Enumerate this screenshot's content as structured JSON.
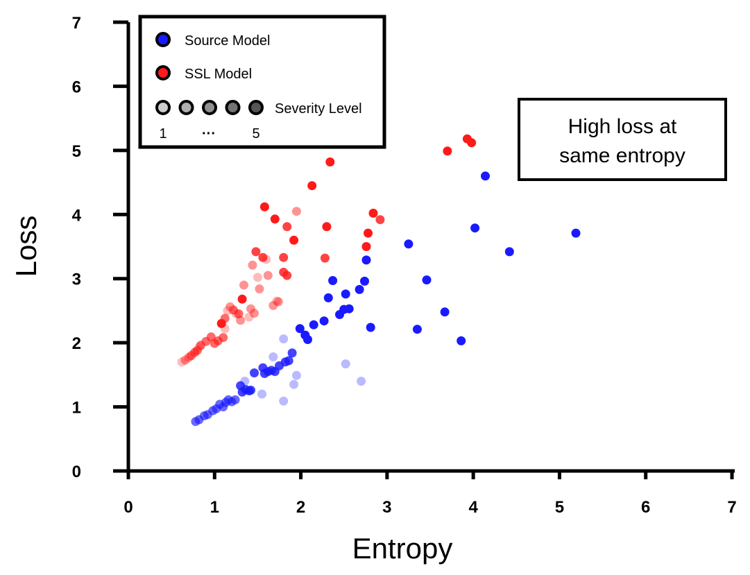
{
  "chart_data": {
    "type": "scatter",
    "title": "",
    "xlabel": "Entropy",
    "ylabel": "Loss",
    "xlim": [
      0,
      7
    ],
    "ylim": [
      0,
      7
    ],
    "xticks": [
      "0",
      "1",
      "2",
      "3",
      "4",
      "5",
      "6",
      "7"
    ],
    "yticks": [
      "0",
      "1",
      "2",
      "3",
      "4",
      "5",
      "6",
      "7"
    ],
    "grid": false,
    "legend": {
      "placement": "top-left",
      "source_label": "Source Model",
      "ssl_label": "SSL Model",
      "severity_label": "Severity Level",
      "severity_min": "1",
      "severity_dots": "···",
      "severity_max": "5"
    },
    "annotation": {
      "line1": "High loss at",
      "line2": "same entropy",
      "placement": "right"
    },
    "colors": {
      "source": "#1a1aff",
      "ssl": "#ff1a1a",
      "severity_fill": "#555555"
    },
    "series": [
      {
        "name": "Source Model",
        "key": "source",
        "points": [
          [
            0.78,
            0.77
          ],
          [
            0.82,
            0.8
          ],
          [
            0.88,
            0.86
          ],
          [
            0.92,
            0.88
          ],
          [
            0.98,
            0.94
          ],
          [
            1.02,
            0.97
          ],
          [
            1.06,
            1.04
          ],
          [
            1.1,
            1.0
          ],
          [
            1.13,
            1.07
          ],
          [
            1.16,
            1.11
          ],
          [
            1.2,
            1.08
          ],
          [
            1.24,
            1.11
          ],
          [
            1.3,
            1.33
          ],
          [
            1.32,
            1.23
          ],
          [
            1.36,
            1.27
          ],
          [
            1.4,
            1.25
          ],
          [
            1.42,
            1.26
          ],
          [
            1.46,
            1.53
          ],
          [
            1.56,
            1.61
          ],
          [
            1.58,
            1.52
          ],
          [
            1.62,
            1.55
          ],
          [
            1.66,
            1.57
          ],
          [
            1.7,
            1.55
          ],
          [
            1.75,
            1.64
          ],
          [
            1.82,
            1.7
          ],
          [
            1.86,
            1.72
          ],
          [
            1.9,
            1.84
          ],
          [
            1.99,
            2.22
          ],
          [
            2.05,
            2.12
          ],
          [
            2.08,
            2.05
          ],
          [
            2.15,
            2.28
          ],
          [
            2.27,
            2.34
          ],
          [
            2.32,
            2.7
          ],
          [
            2.37,
            2.97
          ],
          [
            2.45,
            2.44
          ],
          [
            2.5,
            2.52
          ],
          [
            2.52,
            2.76
          ],
          [
            2.56,
            2.53
          ],
          [
            2.68,
            2.83
          ],
          [
            2.74,
            2.96
          ],
          [
            2.76,
            3.29
          ],
          [
            2.81,
            2.24
          ],
          [
            3.25,
            3.54
          ],
          [
            3.35,
            2.21
          ],
          [
            3.46,
            2.98
          ],
          [
            3.67,
            2.48
          ],
          [
            3.86,
            2.03
          ],
          [
            4.02,
            3.79
          ],
          [
            4.14,
            4.6
          ],
          [
            4.42,
            3.42
          ],
          [
            5.19,
            3.71
          ],
          [
            1.35,
            1.4
          ],
          [
            1.55,
            1.2
          ],
          [
            1.68,
            1.78
          ],
          [
            1.8,
            2.06
          ],
          [
            1.8,
            1.09
          ],
          [
            1.92,
            1.35
          ],
          [
            1.95,
            1.49
          ],
          [
            2.52,
            1.67
          ],
          [
            2.7,
            1.4
          ]
        ],
        "severity": [
          3,
          3,
          3,
          3,
          3,
          3,
          3,
          3,
          3,
          3,
          3,
          3,
          4,
          4,
          4,
          4,
          4,
          4,
          4,
          4,
          4,
          4,
          4,
          4,
          4,
          4,
          4,
          5,
          5,
          5,
          5,
          5,
          5,
          5,
          5,
          5,
          5,
          5,
          5,
          5,
          5,
          5,
          5,
          5,
          5,
          5,
          5,
          5,
          5,
          5,
          5,
          1,
          1,
          1,
          1,
          1,
          1,
          1,
          1,
          1
        ]
      },
      {
        "name": "SSL Model",
        "key": "ssl",
        "points": [
          [
            0.62,
            1.7
          ],
          [
            0.66,
            1.73
          ],
          [
            0.7,
            1.77
          ],
          [
            0.73,
            1.8
          ],
          [
            0.77,
            1.85
          ],
          [
            0.8,
            1.88
          ],
          [
            0.84,
            1.96
          ],
          [
            0.9,
            2.02
          ],
          [
            0.96,
            2.09
          ],
          [
            1.0,
            1.99
          ],
          [
            1.04,
            2.03
          ],
          [
            1.1,
            2.08
          ],
          [
            1.12,
            2.38
          ],
          [
            1.18,
            2.56
          ],
          [
            1.22,
            2.51
          ],
          [
            1.28,
            2.45
          ],
          [
            1.34,
            2.9
          ],
          [
            1.42,
            2.53
          ],
          [
            1.44,
            3.21
          ],
          [
            1.46,
            2.46
          ],
          [
            1.52,
            2.84
          ],
          [
            1.56,
            3.33
          ],
          [
            1.62,
            3.05
          ],
          [
            1.68,
            2.58
          ],
          [
            1.74,
            2.64
          ],
          [
            1.8,
            3.1
          ],
          [
            1.84,
            3.05
          ],
          [
            1.32,
            2.68
          ],
          [
            1.48,
            3.42
          ],
          [
            1.58,
            4.12
          ],
          [
            1.7,
            3.93
          ],
          [
            1.8,
            3.33
          ],
          [
            1.84,
            3.81
          ],
          [
            1.92,
            3.6
          ],
          [
            2.13,
            4.45
          ],
          [
            2.3,
            3.81
          ],
          [
            2.34,
            4.82
          ],
          [
            2.28,
            3.32
          ],
          [
            2.76,
            3.5
          ],
          [
            2.78,
            3.71
          ],
          [
            2.84,
            4.02
          ],
          [
            2.92,
            3.92
          ],
          [
            3.7,
            4.99
          ],
          [
            3.93,
            5.18
          ],
          [
            3.98,
            5.12
          ],
          [
            1.08,
            2.3
          ],
          [
            1.12,
            2.22
          ],
          [
            1.3,
            2.35
          ],
          [
            1.6,
            3.3
          ],
          [
            1.95,
            4.05
          ],
          [
            0.82,
            1.93
          ],
          [
            1.15,
            2.5
          ],
          [
            1.72,
            2.65
          ],
          [
            1.4,
            2.4
          ],
          [
            1.25,
            2.45
          ],
          [
            1.5,
            3.02
          ]
        ],
        "severity": [
          1,
          2,
          2,
          3,
          3,
          3,
          3,
          3,
          3,
          3,
          3,
          3,
          3,
          2,
          3,
          3,
          2,
          2,
          2,
          2,
          2,
          4,
          2,
          2,
          2,
          4,
          4,
          5,
          4,
          5,
          5,
          4,
          4,
          5,
          5,
          5,
          5,
          4,
          5,
          5,
          5,
          4,
          5,
          5,
          5,
          5,
          1,
          2,
          1,
          2,
          1,
          1,
          1,
          1,
          1,
          1
        ]
      }
    ]
  }
}
